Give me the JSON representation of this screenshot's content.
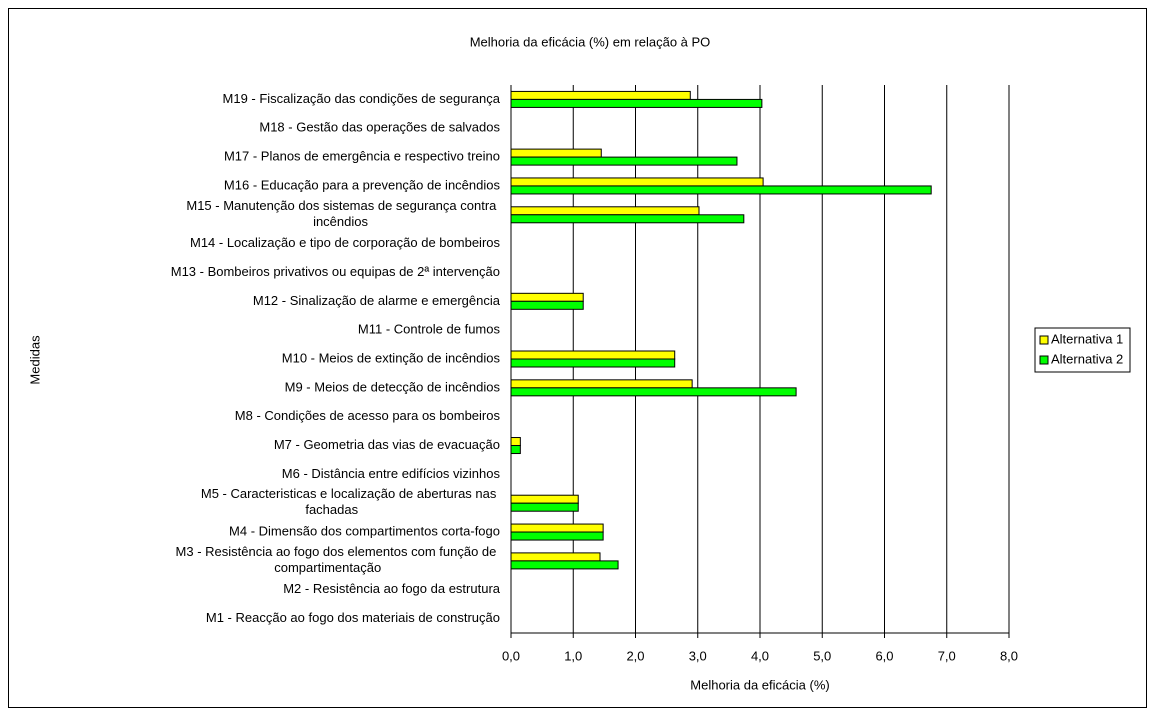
{
  "chart_data": {
    "type": "hbar",
    "title": "Melhoria da eficácia  (%) em relação à PO",
    "x_label": "Melhoria da eficácia (%)",
    "y_label": "Medidas",
    "categories": [
      "M1 - Reacção ao fogo dos materiais de construção",
      "M2 - Resistência ao fogo da estrutura",
      "M3 - Resistência ao fogo dos elementos com função de compartimentação",
      "M4 - Dimensão dos compartimentos corta-fogo",
      "M5 - Caracteristicas e localização de aberturas nas fachadas",
      "M6 - Distância entre edifícios vizinhos",
      "M7 - Geometria das vias de evacuação",
      "M8 - Condições de acesso para os bombeiros",
      "M9 - Meios de detecção de incêndios",
      "M10 - Meios de extinção de incêndios",
      "M11 - Controle de fumos",
      "M12 - Sinalização de alarme e emergência",
      "M13 - Bombeiros privativos ou equipas de 2ª intervenção",
      "M14 - Localização e tipo de corporação de bombeiros",
      "M15 - Manutenção dos sistemas de segurança contra incêndios",
      "M16 - Educação para a prevenção de incêndios",
      "M17 - Planos de emergência e respectivo treino",
      "M18 - Gestão das operações de salvados",
      "M19 - Fiscalização das condições de segurança"
    ],
    "series": [
      {
        "name": "Alternativa 1",
        "color": "#ffff00",
        "values": [
          0,
          0,
          1.43,
          1.48,
          1.08,
          0,
          0.15,
          0,
          2.91,
          2.63,
          0,
          1.16,
          0,
          0,
          3.02,
          4.05,
          1.45,
          0,
          2.88
        ]
      },
      {
        "name": "Alternativa 2",
        "color": "#00ff00",
        "values": [
          0,
          0,
          1.72,
          1.48,
          1.08,
          0,
          0.15,
          0,
          4.58,
          2.63,
          0,
          1.16,
          0,
          0,
          3.74,
          6.75,
          3.63,
          0,
          4.03
        ]
      }
    ],
    "xlim": [
      0,
      8
    ],
    "xticks": [
      {
        "value": 0,
        "label": "0,0"
      },
      {
        "value": 1,
        "label": "1,0"
      },
      {
        "value": 2,
        "label": "2,0"
      },
      {
        "value": 3,
        "label": "3,0"
      },
      {
        "value": 4,
        "label": "4,0"
      },
      {
        "value": 5,
        "label": "5,0"
      },
      {
        "value": 6,
        "label": "6,0"
      },
      {
        "value": 7,
        "label": "7,0"
      },
      {
        "value": 8,
        "label": "8,0"
      }
    ],
    "grid": true,
    "legend": "right"
  }
}
